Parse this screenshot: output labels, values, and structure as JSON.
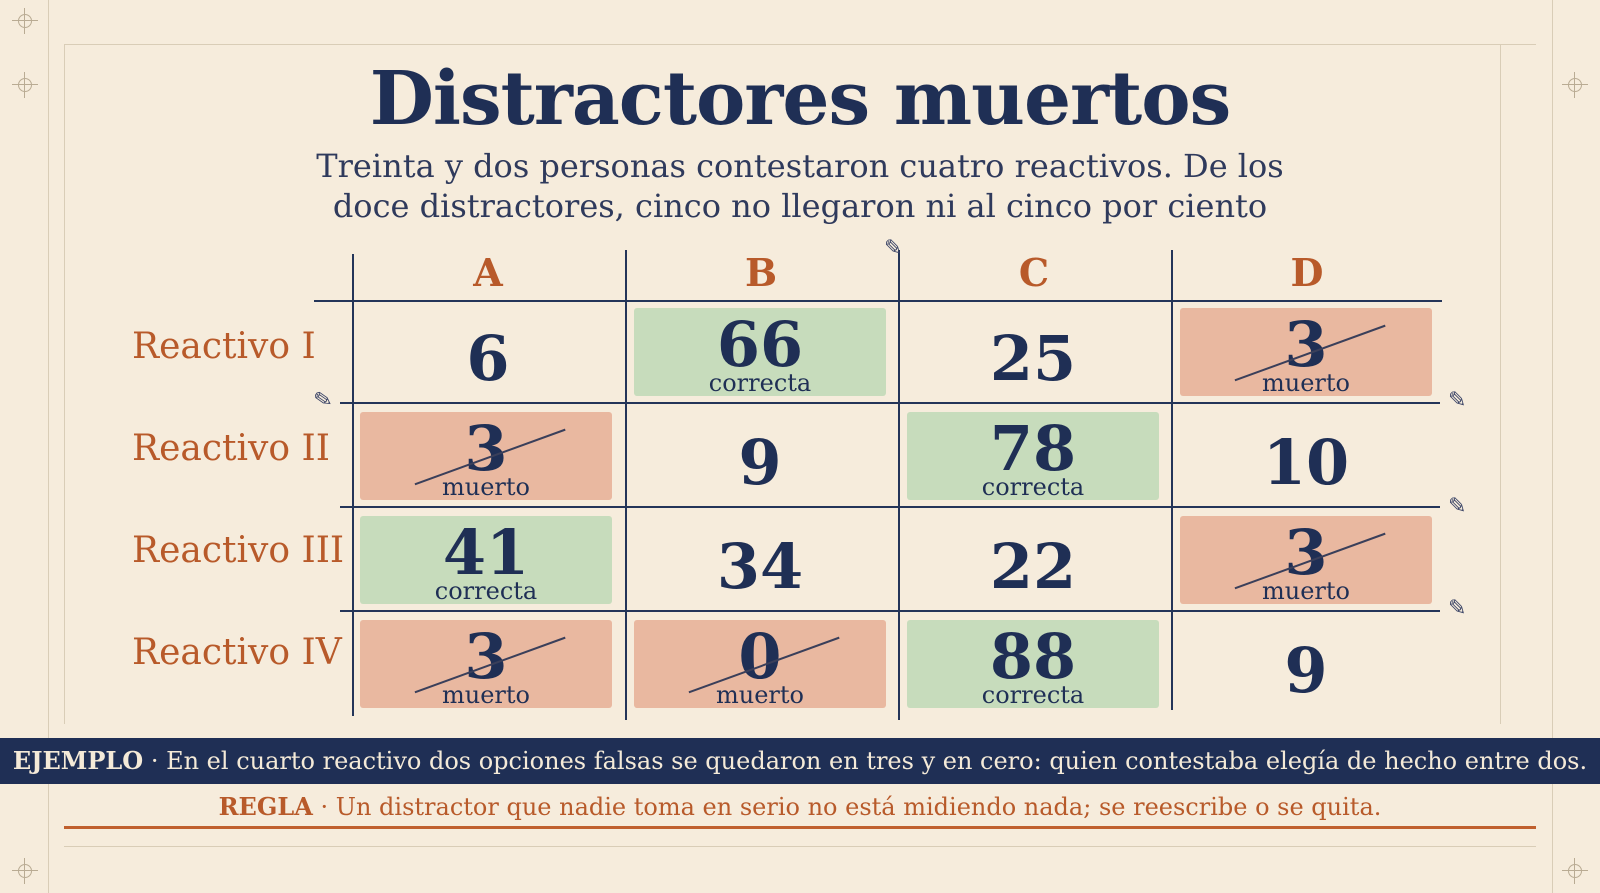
{
  "title": "Distractores muertos",
  "subtitle": "Treinta y dos personas contestaron cuatro reactivos. De los doce distractores, cinco no llegaron ni al cinco por ciento",
  "columns": [
    "A",
    "B",
    "C",
    "D"
  ],
  "rows": [
    {
      "label": "Reactivo I",
      "cells": [
        {
          "value": "6",
          "status": "plain",
          "tag": ""
        },
        {
          "value": "66",
          "status": "correct",
          "tag": "correcta"
        },
        {
          "value": "25",
          "status": "plain",
          "tag": ""
        },
        {
          "value": "3",
          "status": "dead",
          "tag": "muerto"
        }
      ]
    },
    {
      "label": "Reactivo II",
      "cells": [
        {
          "value": "3",
          "status": "dead",
          "tag": "muerto"
        },
        {
          "value": "9",
          "status": "plain",
          "tag": ""
        },
        {
          "value": "78",
          "status": "correct",
          "tag": "correcta"
        },
        {
          "value": "10",
          "status": "plain",
          "tag": ""
        }
      ]
    },
    {
      "label": "Reactivo III",
      "cells": [
        {
          "value": "41",
          "status": "correct",
          "tag": "correcta"
        },
        {
          "value": "34",
          "status": "plain",
          "tag": ""
        },
        {
          "value": "22",
          "status": "plain",
          "tag": ""
        },
        {
          "value": "3",
          "status": "dead",
          "tag": "muerto"
        }
      ]
    },
    {
      "label": "Reactivo IV",
      "cells": [
        {
          "value": "3",
          "status": "dead",
          "tag": "muerto"
        },
        {
          "value": "0",
          "status": "dead",
          "tag": "muerto"
        },
        {
          "value": "88",
          "status": "correct",
          "tag": "correcta"
        },
        {
          "value": "9",
          "status": "plain",
          "tag": ""
        }
      ]
    }
  ],
  "example": {
    "label": "EJEMPLO",
    "text": "En el cuarto reactivo dos opciones falsas se quedaron en tres y en cero: quien contestaba elegía de hecho entre dos."
  },
  "rule": {
    "label": "REGLA",
    "text": "Un distractor que nadie toma en serio no está midiendo nada; se reescribe o se quita."
  },
  "colors": {
    "navy": "#1f2f55",
    "accent": "#b85a2a",
    "correct": "#c7dcbc",
    "dead": "#e9b8a0",
    "paper": "#f6ecdc"
  }
}
